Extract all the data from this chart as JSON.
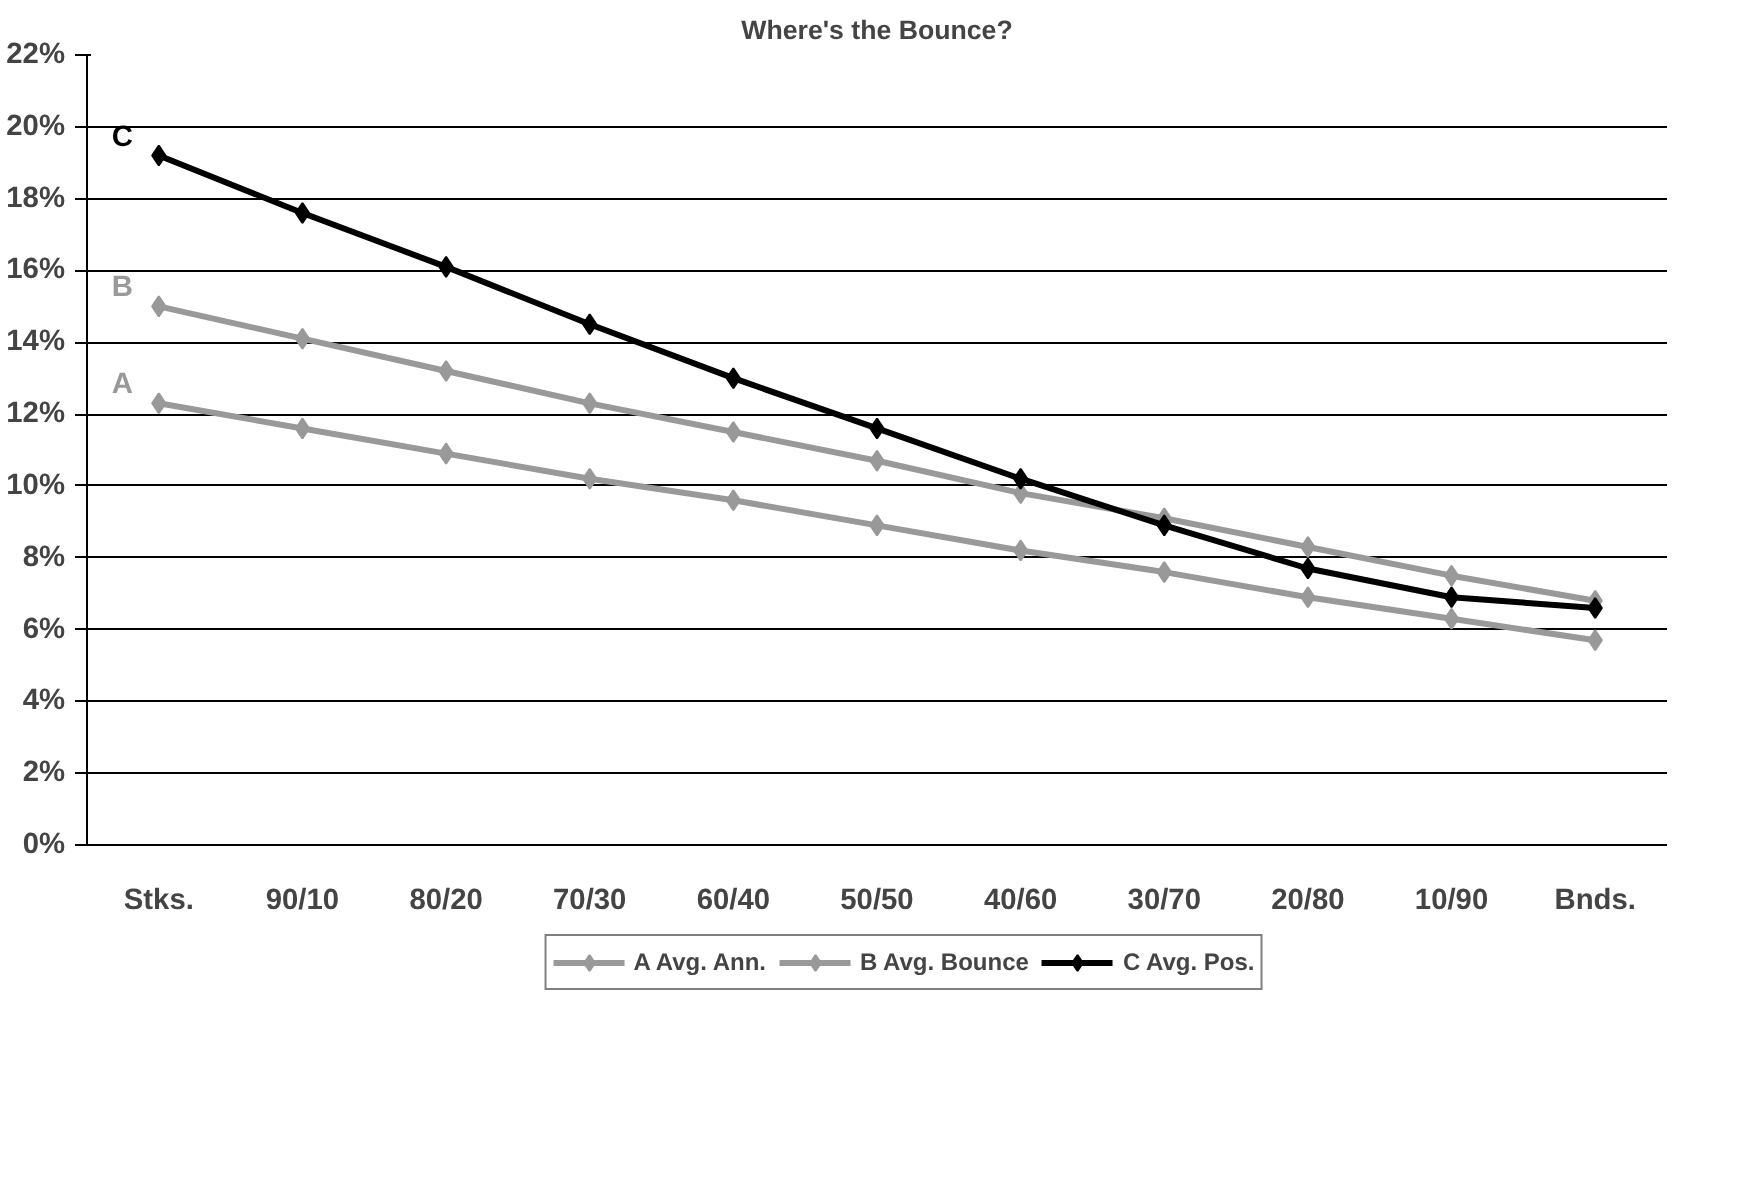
{
  "chart_data": {
    "type": "line",
    "title": "Where's the Bounce?",
    "categories": [
      "Stks.",
      "90/10",
      "80/20",
      "70/30",
      "60/40",
      "50/50",
      "40/60",
      "30/70",
      "20/80",
      "10/90",
      "Bnds."
    ],
    "series": [
      {
        "name": "A Avg. Ann.",
        "color": "#999999",
        "values": [
          12.3,
          11.6,
          10.9,
          10.2,
          9.6,
          8.9,
          8.2,
          7.6,
          6.9,
          6.3,
          5.7
        ]
      },
      {
        "name": "B Avg. Bounce",
        "color": "#999999",
        "values": [
          15.0,
          14.1,
          13.2,
          12.3,
          11.5,
          10.7,
          9.8,
          9.1,
          8.3,
          7.5,
          6.8
        ]
      },
      {
        "name": "C Avg. Pos.",
        "color": "#000000",
        "values": [
          19.2,
          17.6,
          16.1,
          14.5,
          13.0,
          11.6,
          10.2,
          8.9,
          7.7,
          6.9,
          6.6
        ]
      }
    ],
    "annotations": [
      {
        "text": "A",
        "x": "Stks.",
        "y": 12.3
      },
      {
        "text": "B",
        "x": "Stks.",
        "y": 15.0
      },
      {
        "text": "C",
        "x": "Stks.",
        "y": 19.2
      }
    ],
    "ylim": [
      0,
      22
    ],
    "yticks": [
      {
        "value": 0,
        "label": "0%"
      },
      {
        "value": 2,
        "label": "2%"
      },
      {
        "value": 4,
        "label": "4%"
      },
      {
        "value": 6,
        "label": "6%"
      },
      {
        "value": 8,
        "label": "8%"
      },
      {
        "value": 10,
        "label": "10%"
      },
      {
        "value": 12,
        "label": "12%"
      },
      {
        "value": 14,
        "label": "14%"
      },
      {
        "value": 16,
        "label": "16%"
      },
      {
        "value": 18,
        "label": "18%"
      },
      {
        "value": 20,
        "label": "20%"
      },
      {
        "value": 22,
        "label": "22%"
      }
    ],
    "grid": "y",
    "legend": "bottom",
    "marker": "diamond",
    "line_style": "solid"
  }
}
